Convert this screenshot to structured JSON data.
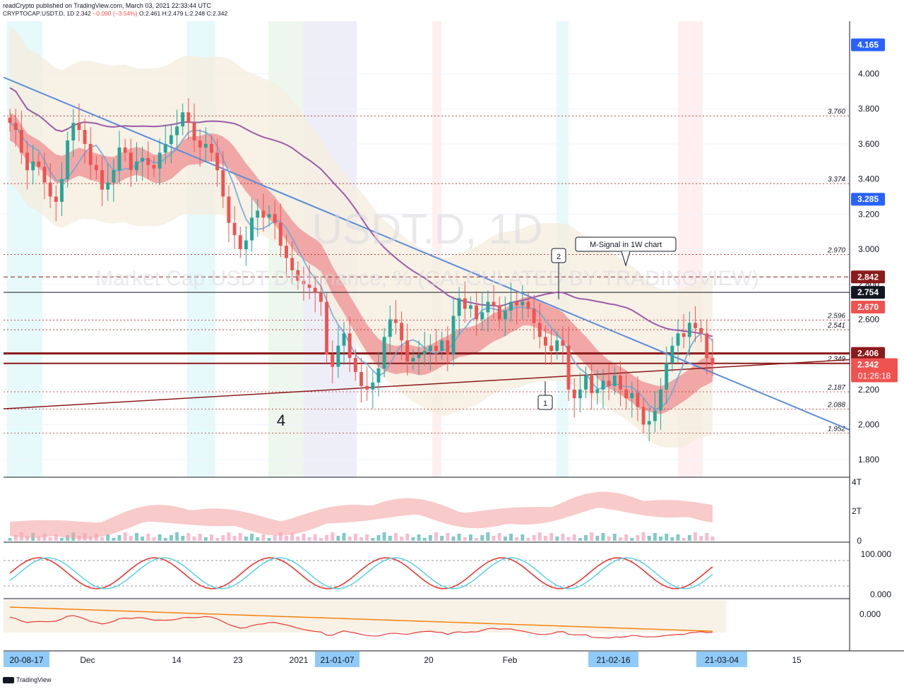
{
  "header": {
    "line1": "readCrypto published on TradingView.com, March 03, 2021 22:33:44 UTC",
    "symbol": "CRYPTOCAP:USDT.D, 1D",
    "last": "2.342",
    "change": "−0.090 (−3.54%)",
    "ohlc": "O:2.461 H:2.479 L:2.248 C:2.342"
  },
  "watermark": {
    "symbol": "USDT.D, 1D",
    "description": "Market Cap USDT Dominance, % (CALCULATED BY TRADINGVIEW)"
  },
  "annotations": {
    "msignal": "M-Signal in 1W chart",
    "callout1": "1",
    "callout2": "2",
    "big_number": "4"
  },
  "footer": {
    "brand": "TradingView"
  },
  "colors": {
    "up": "#26a69a",
    "down": "#ef5350",
    "trendline": "#5b8dd9",
    "ma_purple": "#9c5ba8",
    "support_line": "#8b1a1a",
    "price_badge": "#ef5350"
  },
  "chart_data": {
    "type": "candlestick",
    "symbol": "CRYPTOCAP:USDT.D",
    "timeframe": "1D",
    "y_axis": {
      "range": [
        1.7,
        4.3
      ],
      "ticks": [
        "4.000",
        "3.800",
        "3.600",
        "3.400",
        "3.200",
        "3.000",
        "2.800",
        "2.600",
        "2.400",
        "2.200",
        "2.000",
        "1.800"
      ]
    },
    "x_axis_labels": [
      "Dec",
      "14",
      "23",
      "2021",
      "21-01-07",
      "20",
      "Feb",
      "21-02-16",
      "15"
    ],
    "x_highlight_labels": [
      "20-08-17",
      "21-03-04"
    ],
    "price_badges": [
      {
        "value": "4.165",
        "color": "#2962ff"
      },
      {
        "value": "3.285",
        "color": "#2962ff"
      },
      {
        "value": "2.842",
        "color": "#8b1a1a"
      },
      {
        "value": "2.754",
        "color": "#131722"
      },
      {
        "value": "2.670",
        "color": "#ef5350"
      },
      {
        "value": "2.406",
        "color": "#8b1a1a"
      },
      {
        "value": "2.342",
        "color": "#ef5350",
        "countdown": "01:26:18"
      }
    ],
    "level_labels": [
      {
        "value": 3.76,
        "label": "3.760"
      },
      {
        "value": 3.374,
        "label": "3.374"
      },
      {
        "value": 2.97,
        "label": "2.970"
      },
      {
        "value": 2.596,
        "label": "2.596"
      },
      {
        "value": 2.541,
        "label": "2.541"
      },
      {
        "value": 2.349,
        "label": "2.349"
      },
      {
        "value": 2.187,
        "label": "2.187"
      },
      {
        "value": 2.088,
        "label": "2.088"
      },
      {
        "value": 1.952,
        "label": "1.952"
      }
    ],
    "close_series": [
      3.72,
      3.68,
      3.55,
      3.45,
      3.5,
      3.47,
      3.38,
      3.3,
      3.27,
      3.4,
      3.62,
      3.72,
      3.68,
      3.6,
      3.48,
      3.45,
      3.34,
      3.38,
      3.45,
      3.58,
      3.55,
      3.45,
      3.5,
      3.52,
      3.48,
      3.46,
      3.55,
      3.6,
      3.65,
      3.7,
      3.78,
      3.72,
      3.62,
      3.58,
      3.6,
      3.55,
      3.45,
      3.3,
      3.15,
      3.08,
      3.0,
      3.05,
      3.18,
      3.22,
      3.18,
      3.2,
      3.15,
      3.02,
      2.95,
      2.88,
      2.82,
      2.8,
      2.78,
      2.75,
      2.7,
      2.4,
      2.33,
      2.45,
      2.52,
      2.38,
      2.3,
      2.22,
      2.2,
      2.24,
      2.32,
      2.5,
      2.6,
      2.58,
      2.48,
      2.36,
      2.38,
      2.4,
      2.42,
      2.45,
      2.42,
      2.48,
      2.4,
      2.62,
      2.72,
      2.66,
      2.68,
      2.6,
      2.64,
      2.7,
      2.68,
      2.6,
      2.65,
      2.7,
      2.68,
      2.7,
      2.66,
      2.58,
      2.5,
      2.45,
      2.42,
      2.48,
      2.45,
      2.2,
      2.15,
      2.2,
      2.28,
      2.18,
      2.2,
      2.25,
      2.22,
      2.28,
      2.2,
      2.15,
      2.18,
      2.1,
      2.0,
      2.02,
      2.08,
      2.2,
      2.35,
      2.45,
      2.52,
      2.5,
      2.58,
      2.55,
      2.52,
      2.38,
      2.342
    ],
    "panels": [
      {
        "name": "volume_cloud",
        "ticks": [
          "4T",
          "2T",
          "0"
        ]
      },
      {
        "name": "stoch_rsi",
        "ticks": [
          "100.000",
          "0.000"
        ]
      },
      {
        "name": "oscillator",
        "ticks": [
          "0.000"
        ]
      }
    ]
  }
}
